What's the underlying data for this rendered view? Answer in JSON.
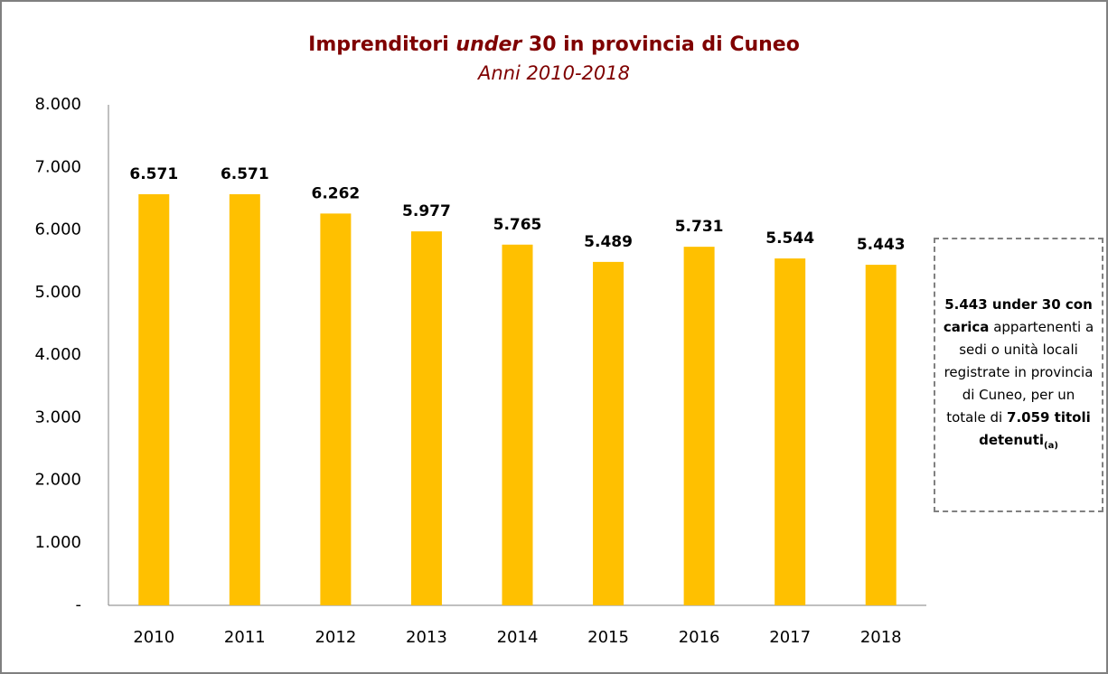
{
  "chart_data": {
    "type": "bar",
    "title_parts": [
      "Imprenditori ",
      "under",
      " 30 in provincia di Cuneo"
    ],
    "subtitle": "Anni 2010-2018",
    "categories": [
      "2010",
      "2011",
      "2012",
      "2013",
      "2014",
      "2015",
      "2016",
      "2017",
      "2018"
    ],
    "values": [
      6571,
      6571,
      6262,
      5977,
      5765,
      5489,
      5731,
      5544,
      5443
    ],
    "value_labels": [
      "6.571",
      "6.571",
      "6.262",
      "5.977",
      "5.765",
      "5.489",
      "5.731",
      "5.544",
      "5.443"
    ],
    "color": "#ffc000",
    "ylim": [
      0,
      8000
    ],
    "yticks": [
      {
        "value": 0,
        "label": "-"
      },
      {
        "value": 1000,
        "label": "1.000"
      },
      {
        "value": 2000,
        "label": "2.000"
      },
      {
        "value": 3000,
        "label": "3.000"
      },
      {
        "value": 4000,
        "label": "4.000"
      },
      {
        "value": 5000,
        "label": "5.000"
      },
      {
        "value": 6000,
        "label": "6.000"
      },
      {
        "value": 7000,
        "label": "7.000"
      },
      {
        "value": 8000,
        "label": "8.000"
      }
    ],
    "grid": false,
    "annotation": [
      {
        "text": "5.443 under 30 con carica",
        "style": "bold"
      },
      {
        "text": "appartenenti a sedi o unità locali registrate in provincia di Cuneo, per un totale di",
        "style": "normal"
      },
      {
        "text": "7.059 titoli detenuti",
        "style": "bold"
      },
      {
        "text": "(a)",
        "style": "sub"
      }
    ]
  }
}
